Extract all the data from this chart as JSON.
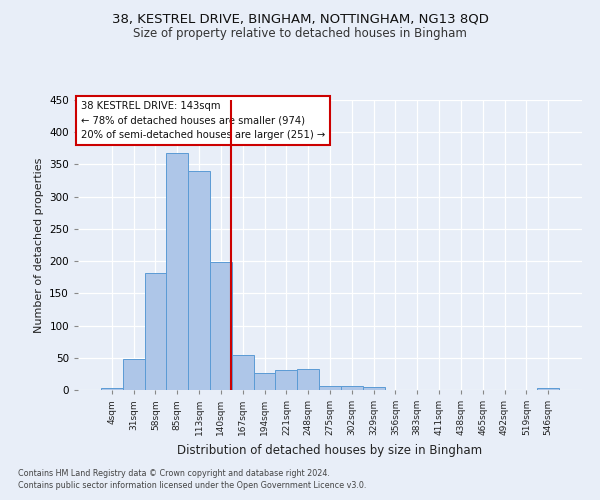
{
  "title_line1": "38, KESTREL DRIVE, BINGHAM, NOTTINGHAM, NG13 8QD",
  "title_line2": "Size of property relative to detached houses in Bingham",
  "xlabel": "Distribution of detached houses by size in Bingham",
  "ylabel": "Number of detached properties",
  "footnote1": "Contains HM Land Registry data © Crown copyright and database right 2024.",
  "footnote2": "Contains public sector information licensed under the Open Government Licence v3.0.",
  "annotation_line1": "38 KESTREL DRIVE: 143sqm",
  "annotation_line2": "← 78% of detached houses are smaller (974)",
  "annotation_line3": "20% of semi-detached houses are larger (251) →",
  "bin_labels": [
    "4sqm",
    "31sqm",
    "58sqm",
    "85sqm",
    "113sqm",
    "140sqm",
    "167sqm",
    "194sqm",
    "221sqm",
    "248sqm",
    "275sqm",
    "302sqm",
    "329sqm",
    "356sqm",
    "383sqm",
    "411sqm",
    "438sqm",
    "465sqm",
    "492sqm",
    "519sqm",
    "546sqm"
  ],
  "bar_values": [
    3,
    48,
    182,
    367,
    340,
    198,
    54,
    26,
    31,
    33,
    6,
    6,
    5,
    0,
    0,
    0,
    0,
    0,
    0,
    0,
    3
  ],
  "bar_color": "#aec6e8",
  "bar_edge_color": "#5b9bd5",
  "vline_x": 5.45,
  "vline_color": "#cc0000",
  "ylim": [
    0,
    450
  ],
  "yticks": [
    0,
    50,
    100,
    150,
    200,
    250,
    300,
    350,
    400,
    450
  ],
  "background_color": "#e8eef8",
  "grid_color": "#ffffff",
  "annotation_box_color": "#ffffff",
  "annotation_box_edge": "#cc0000",
  "title1_fontsize": 9.5,
  "title2_fontsize": 8.5
}
